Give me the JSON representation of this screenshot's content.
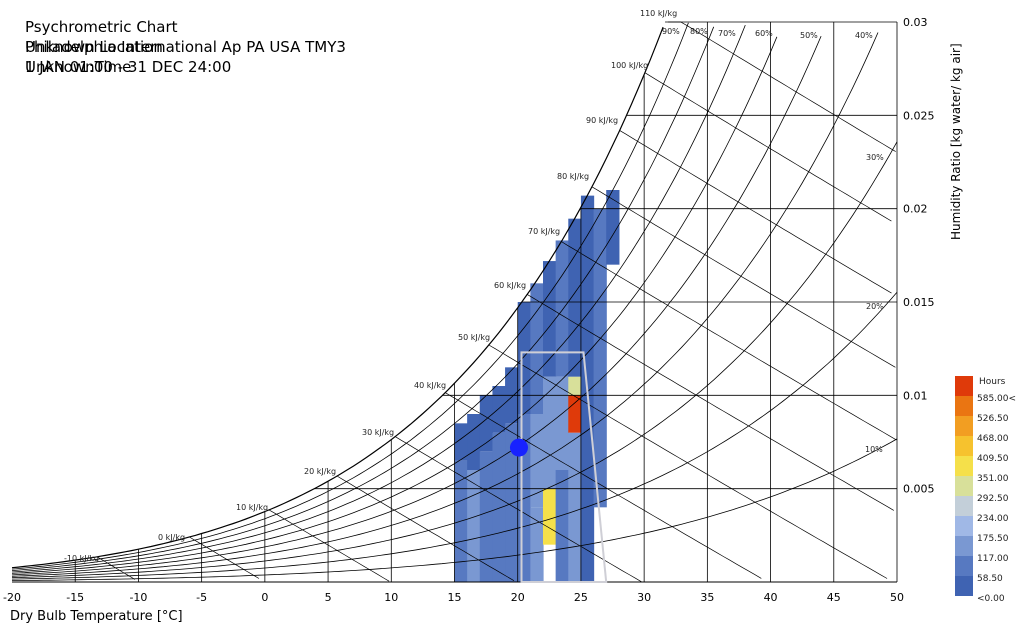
{
  "chart_data": {
    "type": "heatmap",
    "title": "Psychrometric Chart",
    "subtitle_lines": [
      "Philadelphia International Ap PA USA TMY3",
      "1 JAN 01:00 - 31 DEC 24:00"
    ],
    "overlay_text": [
      "Unknown Location",
      "UnknownTime"
    ],
    "xlabel": "Dry Bulb Temperature [°C]",
    "ylabel": "Humidity Ratio [kg water/ kg air]",
    "xlim": [
      -20,
      50
    ],
    "ylim": [
      0,
      0.03
    ],
    "x_ticks": [
      "-20",
      "-15",
      "-10",
      "-5",
      "0",
      "5",
      "10",
      "15",
      "20",
      "25",
      "30",
      "35",
      "40",
      "45",
      "50"
    ],
    "y_ticks": [
      "0.005",
      "0.01",
      "0.015",
      "0.02",
      "0.025",
      "0.03"
    ],
    "rh_curves": [
      10,
      20,
      30,
      40,
      50,
      60,
      70,
      80,
      90,
      100
    ],
    "rh_labels": [
      "10%",
      "20%",
      "30%",
      "40%",
      "50%",
      "60%",
      "70%",
      "80%",
      "90%"
    ],
    "enthalpy_lines": [
      -10,
      0,
      10,
      20,
      30,
      40,
      50,
      60,
      70,
      80,
      90,
      100,
      110
    ],
    "enthalpy_labels": [
      "-10 kJ/kg",
      "0 kJ/kg",
      "10 kJ/kg",
      "20 kJ/kg",
      "30 kJ/kg",
      "40 kJ/kg",
      "50 kJ/kg",
      "60 kJ/kg",
      "70 kJ/kg",
      "80 kJ/kg",
      "90 kJ/kg",
      "100 kJ/kg",
      "110 kJ/kg"
    ],
    "legend": {
      "title": "Hours",
      "labels": [
        "<0.00",
        "58.50",
        "117.00",
        "175.50",
        "234.00",
        "292.50",
        "351.00",
        "409.50",
        "468.00",
        "526.50",
        "585.00<"
      ],
      "colors": [
        "#3f63b2",
        "#5779c1",
        "#7a98d2",
        "#a0b8e6",
        "#c3cfd9",
        "#d8e09a",
        "#f5e04a",
        "#f6c22e",
        "#f29e22",
        "#ea7512",
        "#df3a0a"
      ]
    },
    "comfort_polygon": [
      [
        20.3,
        0
      ],
      [
        27.0,
        0
      ],
      [
        25.2,
        0.0123
      ],
      [
        20.3,
        0.0123
      ]
    ],
    "point": {
      "temp": 20.1,
      "w": 0.0072
    },
    "heat_cells": [
      {
        "temp": 15,
        "w0": 0.0,
        "w1": 0.0065,
        "level": 1
      },
      {
        "temp": 15,
        "w0": 0.0065,
        "w1": 0.0085,
        "level": 0
      },
      {
        "temp": 16,
        "w0": 0.0,
        "w1": 0.006,
        "level": 2
      },
      {
        "temp": 16,
        "w0": 0.006,
        "w1": 0.009,
        "level": 0
      },
      {
        "temp": 17,
        "w0": 0.0,
        "w1": 0.007,
        "level": 1
      },
      {
        "temp": 17,
        "w0": 0.007,
        "w1": 0.01,
        "level": 0
      },
      {
        "temp": 18,
        "w0": 0.0,
        "w1": 0.008,
        "level": 1
      },
      {
        "temp": 18,
        "w0": 0.008,
        "w1": 0.0105,
        "level": 0
      },
      {
        "temp": 19,
        "w0": 0.0,
        "w1": 0.0085,
        "level": 1
      },
      {
        "temp": 19,
        "w0": 0.0085,
        "w1": 0.0115,
        "level": 0
      },
      {
        "temp": 20,
        "w0": 0.0,
        "w1": 0.009,
        "level": 1
      },
      {
        "temp": 20,
        "w0": 0.009,
        "w1": 0.015,
        "level": 0
      },
      {
        "temp": 21,
        "w0": 0.0,
        "w1": 0.004,
        "level": 2
      },
      {
        "temp": 21,
        "w0": 0.004,
        "w1": 0.009,
        "level": 2
      },
      {
        "temp": 21,
        "w0": 0.009,
        "w1": 0.016,
        "level": 1
      },
      {
        "temp": 22,
        "w0": 0.002,
        "w1": 0.005,
        "level": 6
      },
      {
        "temp": 22,
        "w0": 0.005,
        "w1": 0.011,
        "level": 2
      },
      {
        "temp": 22,
        "w0": 0.011,
        "w1": 0.018,
        "level": 0
      },
      {
        "temp": 23,
        "w0": 0.0,
        "w1": 0.006,
        "level": 1
      },
      {
        "temp": 23,
        "w0": 0.006,
        "w1": 0.011,
        "level": 2
      },
      {
        "temp": 23,
        "w0": 0.011,
        "w1": 0.0185,
        "level": 1
      },
      {
        "temp": 24,
        "w0": 0.0,
        "w1": 0.008,
        "level": 2
      },
      {
        "temp": 24,
        "w0": 0.008,
        "w1": 0.01,
        "level": 10
      },
      {
        "temp": 24,
        "w0": 0.01,
        "w1": 0.011,
        "level": 5
      },
      {
        "temp": 24,
        "w0": 0.011,
        "w1": 0.0195,
        "level": 0
      },
      {
        "temp": 25,
        "w0": 0.0,
        "w1": 0.021,
        "level": 0
      },
      {
        "temp": 26,
        "w0": 0.004,
        "w1": 0.02,
        "level": 1
      },
      {
        "temp": 27,
        "w0": 0.017,
        "w1": 0.021,
        "level": 0
      }
    ]
  }
}
